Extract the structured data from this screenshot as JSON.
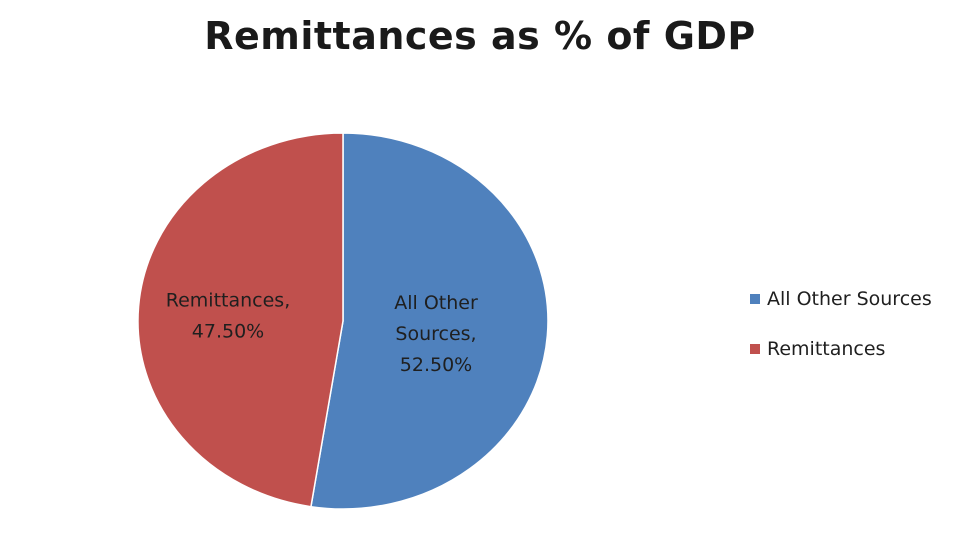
{
  "chart_data": {
    "type": "pie",
    "title": "Remittances as % of GDP",
    "slices": [
      {
        "name": "All Other Sources",
        "value": 52.5,
        "color": "#4f81bd",
        "label_lines": [
          "All Other",
          "Sources,",
          "52.50%"
        ]
      },
      {
        "name": "Remittances",
        "value": 47.5,
        "color": "#c0504d",
        "label_lines": [
          "Remittances,",
          "47.50%"
        ]
      }
    ],
    "legend": {
      "position": "right",
      "entries": [
        {
          "label": "All Other Sources",
          "color": "#4f81bd"
        },
        {
          "label": "Remittances",
          "color": "#c0504d"
        }
      ]
    }
  }
}
